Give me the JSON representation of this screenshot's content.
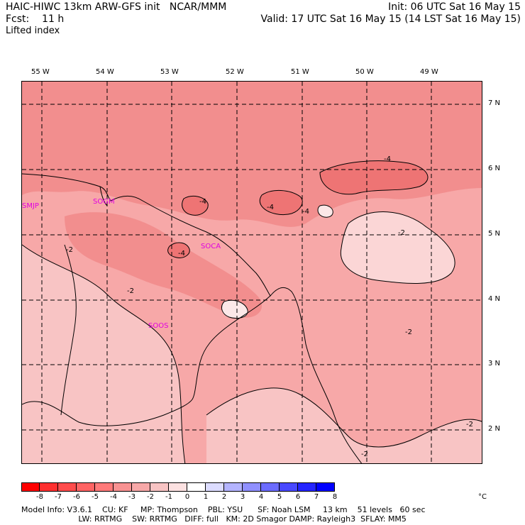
{
  "header": {
    "left_line1": "HAIC-HIWC 13km ARW-GFS init   NCAR/MMM",
    "left_line2": "Fcst:    11 h",
    "left_line3": "Lifted index",
    "right_line1": "Init: 06 UTC Sat 16 May 15",
    "right_line2": "Valid: 17 UTC Sat 16 May 15 (14 LST Sat 16 May 15)"
  },
  "map": {
    "lon_labels": [
      "55 W",
      "54 W",
      "53 W",
      "52 W",
      "51 W",
      "50 W",
      "49 W"
    ],
    "lat_labels": [
      "7 N",
      "6 N",
      "5 N",
      "4 N",
      "3 N",
      "2 N"
    ],
    "stations": [
      "SMJP",
      "SOGM",
      "SOCA",
      "SOOS"
    ],
    "contour_labels": [
      "-4",
      "-4",
      "-4",
      "-4",
      "-4",
      "-2",
      "-2",
      "-2",
      "-2",
      "-2",
      "-2"
    ]
  },
  "colorbar": {
    "labels": [
      "-8",
      "-7",
      "-6",
      "-5",
      "-4",
      "-3",
      "-2",
      "-1",
      "0",
      "1",
      "2",
      "3",
      "4",
      "5",
      "6",
      "7",
      "8"
    ],
    "unit": "°C",
    "colors": [
      "#ff0000",
      "#ff3030",
      "#ff4c4c",
      "#ff6464",
      "#ff7a7a",
      "#f89292",
      "#f7a8a8",
      "#f8c4c4",
      "#fce1e1",
      "#ffffff",
      "#dcdcff",
      "#b4b4ff",
      "#9090ff",
      "#6c6cff",
      "#4848ff",
      "#2424ff",
      "#0000ff"
    ]
  },
  "model_info": {
    "line1": "Model Info: V3.6.1    CU: KF     MP: Thompson    PBL: YSU      SF: Noah LSM     13 km    51 levels   60 sec",
    "line2": "                       LW: RRTMG    SW: RRTMG   DIFF: full   KM: 2D Smagor DAMP: Rayleigh3  SFLAY: MM5"
  }
}
